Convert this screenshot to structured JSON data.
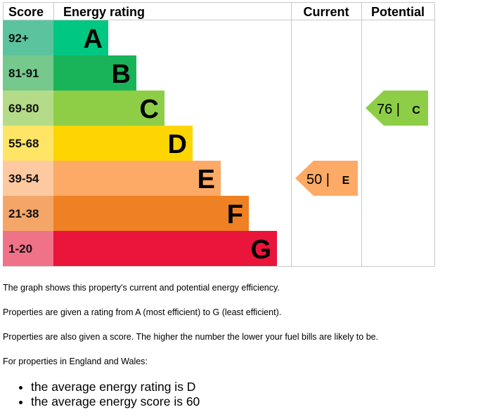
{
  "chart_data": {
    "type": "bar",
    "headers": {
      "score": "Score",
      "rating": "Energy rating",
      "current": "Current",
      "potential": "Potential"
    },
    "bands": [
      {
        "letter": "A",
        "range": "92+",
        "color": "#00c781",
        "score_color": "#5bc49f"
      },
      {
        "letter": "B",
        "range": "81-91",
        "color": "#19b459",
        "score_color": "#75c98c"
      },
      {
        "letter": "C",
        "range": "69-80",
        "color": "#8dce46",
        "score_color": "#b4dc88"
      },
      {
        "letter": "D",
        "range": "55-68",
        "color": "#ffd500",
        "score_color": "#ffe566"
      },
      {
        "letter": "E",
        "range": "39-54",
        "color": "#fcaa65",
        "score_color": "#fdc9a0"
      },
      {
        "letter": "F",
        "range": "21-38",
        "color": "#ef8023",
        "score_color": "#f4a669"
      },
      {
        "letter": "G",
        "range": "1-20",
        "color": "#e9153b",
        "score_color": "#f07288"
      }
    ],
    "current": {
      "score": 50,
      "letter": "E",
      "color": "#fcaa65"
    },
    "potential": {
      "score": 76,
      "letter": "C",
      "color": "#8dce46"
    }
  },
  "text": {
    "line1": "The graph shows this property's current and potential energy efficiency.",
    "line2": "Properties are given a rating from A (most efficient) to G (least efficient).",
    "line3": "Properties are also given a score. The higher the number the lower your fuel bills are likely to be.",
    "line4": "For properties in England and Wales:",
    "bullet1": "the average energy rating is D",
    "bullet2": "the average energy score is 60"
  }
}
